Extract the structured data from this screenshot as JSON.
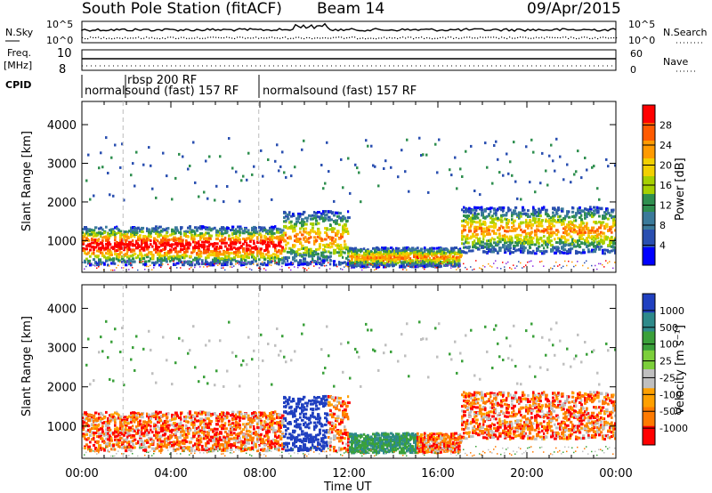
{
  "header": {
    "station": "South Pole Station (fitACF)",
    "beam": "Beam 14",
    "date": "09/Apr/2015"
  },
  "status_panels": {
    "nsky_label": "N.Sky",
    "nsearch_label": "N.Search",
    "noise_ticks_left": [
      "10^5",
      "10^0"
    ],
    "noise_ticks_right": [
      "10^5",
      "10^0"
    ],
    "freq_label": "Freq.",
    "freq_unit": "[MHz]",
    "freq_ticks": [
      "10",
      "8"
    ],
    "nave_label": "Nave",
    "nave_ticks": [
      "60",
      "0"
    ],
    "cpid_label": "CPID",
    "cpid_segments": [
      "normalsound (fast) 157 RF",
      "rbsp 200 RF",
      "normalsound (fast) 157 RF"
    ]
  },
  "power_scale": {
    "title": "Power [dB]",
    "ticks": [
      "28",
      "24",
      "20",
      "16",
      "12",
      "8",
      "4"
    ],
    "colors": [
      "#ff0000",
      "#ff5a00",
      "#ff9a00",
      "#f2d000",
      "#a6d000",
      "#2f8f4f",
      "#3b7a9a",
      "#2a4fb0",
      "#0000ff"
    ]
  },
  "velocity_scale": {
    "title": "Velocity [m s⁻¹]",
    "ticks": [
      "1000",
      "500",
      "100",
      "25",
      "-25",
      "-100",
      "-500",
      "-1000"
    ],
    "colors": [
      "#2040c0",
      "#2e8a8a",
      "#3aa03a",
      "#7ccf3a",
      "#bfbfbf",
      "#ffa000",
      "#ff7a00",
      "#ff0000"
    ]
  },
  "axes": {
    "ylabel": "Slant Range [km]",
    "xlabel": "Time UT",
    "yticks": [
      "4000",
      "3000",
      "2000",
      "1000"
    ],
    "xticks": [
      "00:00",
      "04:00",
      "08:00",
      "12:00",
      "16:00",
      "20:00",
      "00:00"
    ]
  },
  "chart_data": [
    {
      "type": "heatmap",
      "title": "",
      "xlabel": "",
      "ylabel": "Slant Range [km]",
      "x_range_hours": [
        0,
        24
      ],
      "y_range_km": [
        180,
        4600
      ],
      "colorbar": "Power [dB]",
      "colorbar_range": [
        0,
        30
      ]
    },
    {
      "type": "heatmap",
      "title": "",
      "xlabel": "Time UT",
      "ylabel": "Slant Range [km]",
      "x_range_hours": [
        0,
        24
      ],
      "y_range_km": [
        180,
        4600
      ],
      "colorbar": "Velocity [m s⁻¹]",
      "colorbar_range": [
        -1000,
        1000
      ]
    }
  ]
}
